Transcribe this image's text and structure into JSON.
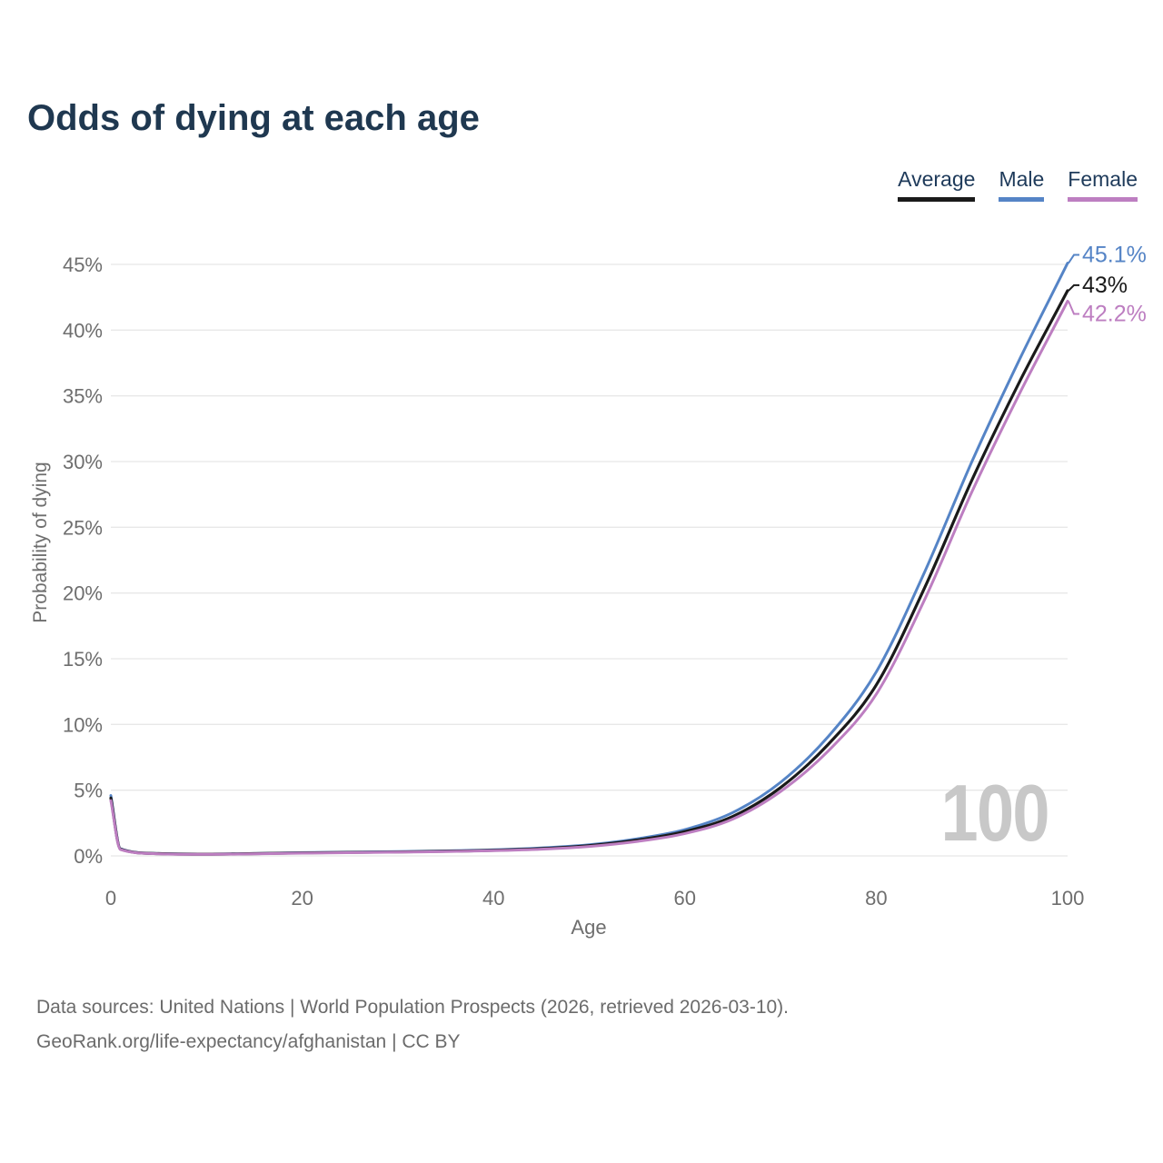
{
  "title": "Odds of dying at each age",
  "legend": [
    {
      "label": "Average",
      "color": "#1a1a1a"
    },
    {
      "label": "Male",
      "color": "#5584c6"
    },
    {
      "label": "Female",
      "color": "#bd7ec1"
    }
  ],
  "watermark": "100",
  "footer": {
    "line1": "Data sources: United Nations | World Population Prospects (2026, retrieved 2026-03-10).",
    "line2": "GeoRank.org/life-expectancy/afghanistan | CC BY"
  },
  "colors": {
    "title_text": "#1f3850",
    "legend_text": "#1e3a5a",
    "axis_text": "#6e6e6e",
    "gridline": "#e8e8e8",
    "watermark": "#c8c8c8",
    "footer_text": "#6b6b6b",
    "background": "#ffffff"
  },
  "chart_data": {
    "type": "line",
    "title": "Odds of dying at each age",
    "xlabel": "Age",
    "ylabel": "Probability of dying",
    "xlim": [
      0,
      100
    ],
    "ylim": [
      0,
      45
    ],
    "xticks": [
      0,
      20,
      40,
      60,
      80,
      100
    ],
    "yticks": [
      0,
      5,
      10,
      15,
      20,
      25,
      30,
      35,
      40,
      45
    ],
    "ytick_suffix": "%",
    "grid": "horizontal-only",
    "legend_position": "top-right",
    "x": [
      0,
      1,
      5,
      10,
      15,
      20,
      25,
      30,
      35,
      40,
      45,
      50,
      55,
      60,
      65,
      70,
      75,
      80,
      85,
      90,
      95,
      100
    ],
    "series": [
      {
        "name": "Male",
        "color": "#5584c6",
        "end_label": "45.1%",
        "end_value": 45.1,
        "values": [
          4.6,
          0.55,
          0.18,
          0.14,
          0.18,
          0.25,
          0.28,
          0.33,
          0.38,
          0.46,
          0.6,
          0.85,
          1.3,
          2.0,
          3.3,
          5.6,
          9.1,
          14.0,
          21.5,
          30.0,
          37.8,
          45.1
        ]
      },
      {
        "name": "Average",
        "color": "#1a1a1a",
        "end_label": "43%",
        "end_value": 43.0,
        "values": [
          4.4,
          0.52,
          0.17,
          0.13,
          0.17,
          0.23,
          0.26,
          0.3,
          0.35,
          0.42,
          0.55,
          0.78,
          1.2,
          1.85,
          3.0,
          5.2,
          8.5,
          13.0,
          20.3,
          28.6,
          36.1,
          43.0
        ]
      },
      {
        "name": "Female",
        "color": "#bd7ec1",
        "end_label": "42.2%",
        "end_value": 42.2,
        "values": [
          4.2,
          0.49,
          0.16,
          0.12,
          0.16,
          0.21,
          0.24,
          0.28,
          0.33,
          0.4,
          0.51,
          0.72,
          1.1,
          1.7,
          2.8,
          4.9,
          8.0,
          12.3,
          19.4,
          27.7,
          35.2,
          42.2
        ]
      }
    ]
  }
}
